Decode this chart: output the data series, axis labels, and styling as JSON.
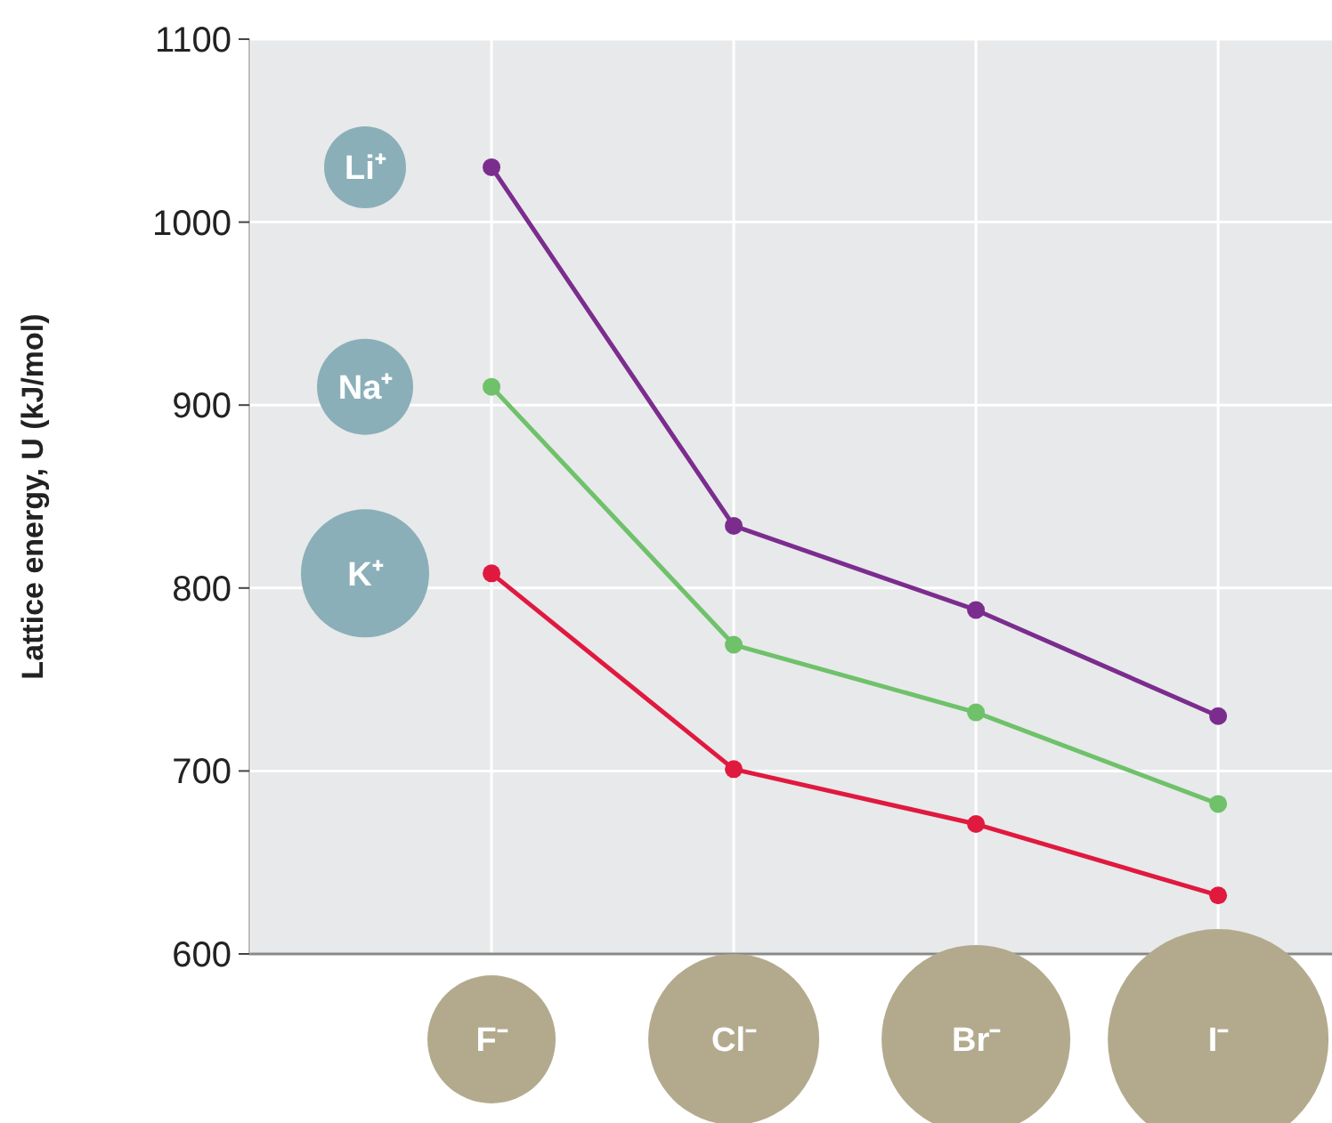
{
  "chart_data": {
    "type": "line",
    "ylabel": "Lattice energy, U (kJ/mol)",
    "categories": [
      "F⁻",
      "Cl⁻",
      "Br⁻",
      "I⁻"
    ],
    "ylim": [
      600,
      1100
    ],
    "yticks": [
      600,
      700,
      800,
      900,
      1000,
      1100
    ],
    "grid": true,
    "marker": "circle",
    "line_style": "solid",
    "series": [
      {
        "name": "Li⁺",
        "color": "#7b2d8e",
        "values": [
          1030,
          834,
          788,
          730
        ]
      },
      {
        "name": "Na⁺",
        "color": "#6fc16a",
        "values": [
          910,
          769,
          732,
          682
        ]
      },
      {
        "name": "K⁺",
        "color": "#e0193f",
        "values": [
          808,
          701,
          671,
          632
        ]
      }
    ]
  }
}
